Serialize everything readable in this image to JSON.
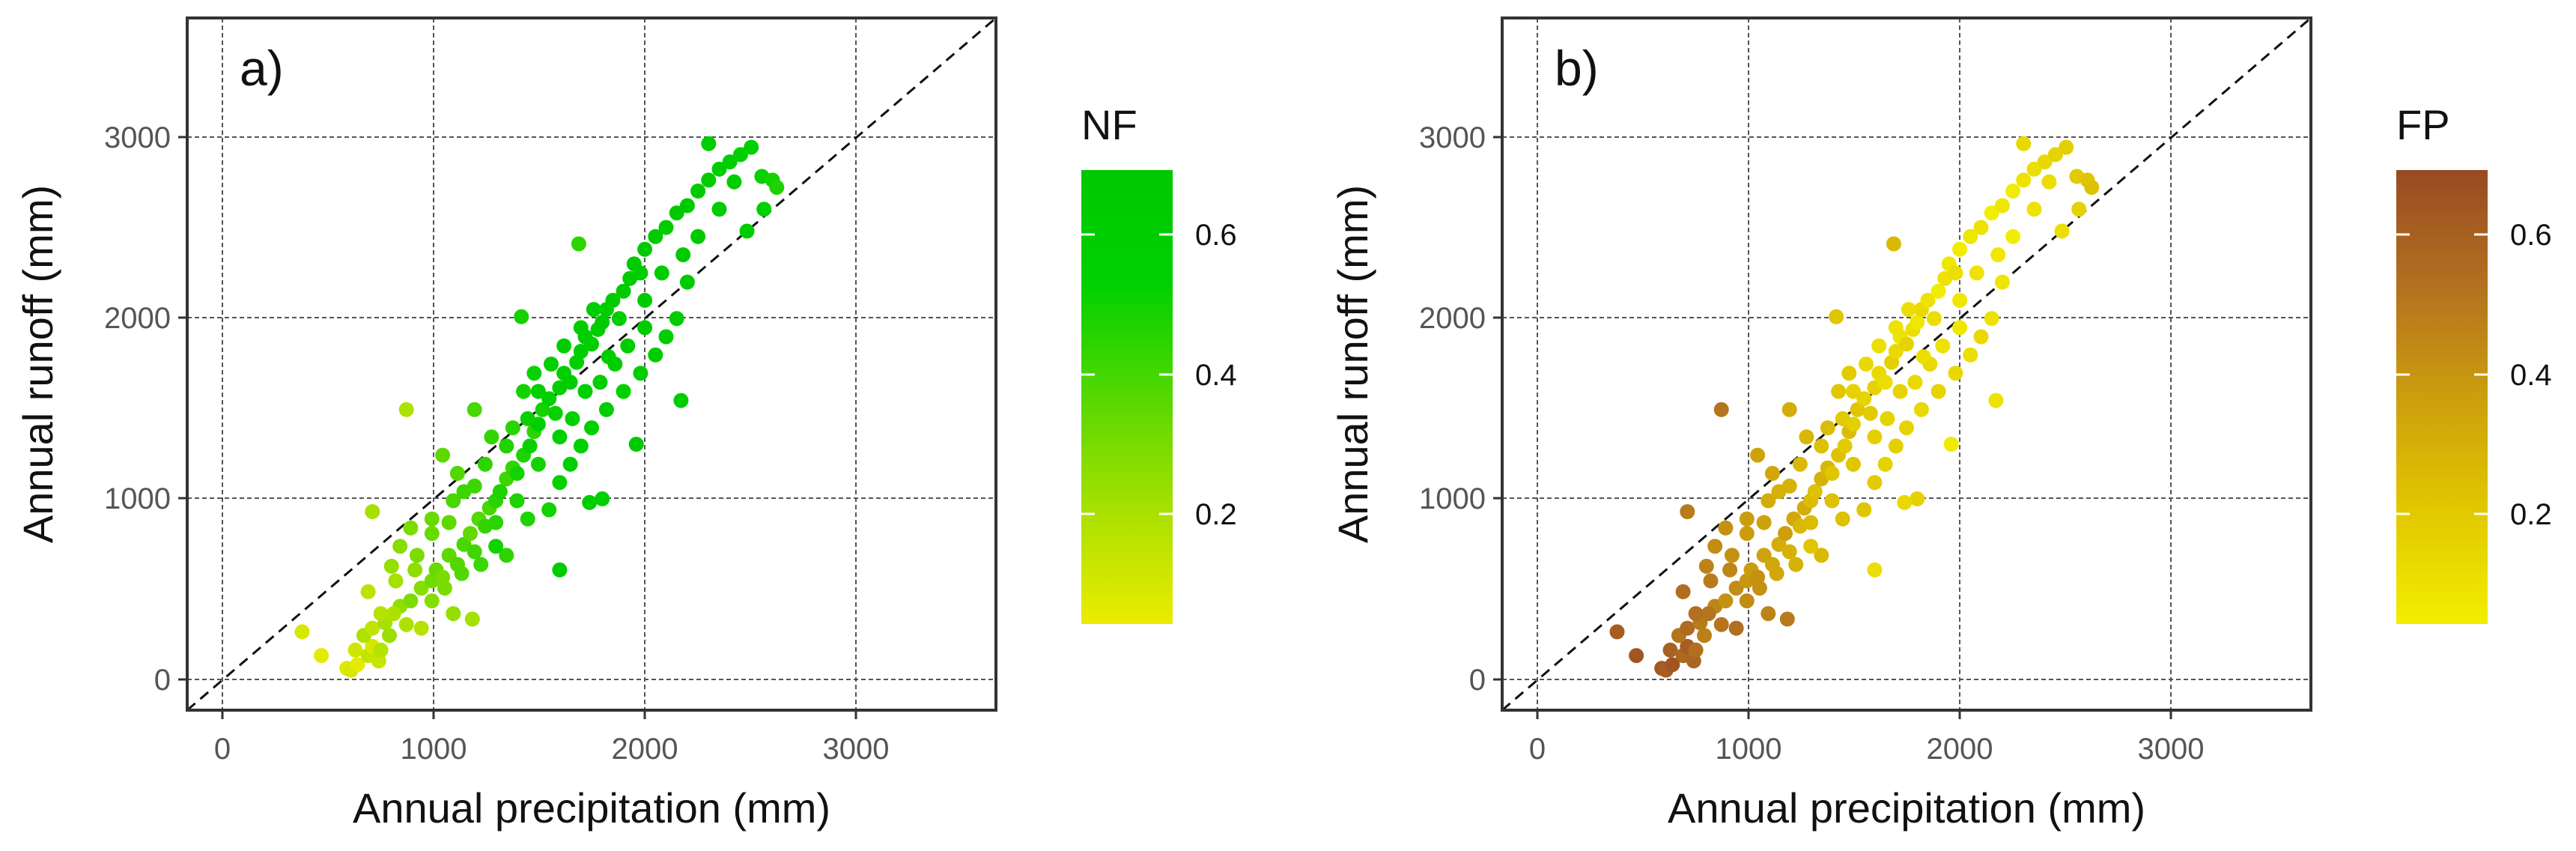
{
  "chart_data": [
    {
      "type": "scatter",
      "panel_label": "a)",
      "xlabel": "Annual precipitation (mm)",
      "ylabel": "Annual runoff (mm)",
      "xlim": [
        -150,
        3650
      ],
      "ylim": [
        -150,
        3650
      ],
      "xticks": [
        0,
        1000,
        2000,
        3000
      ],
      "yticks": [
        0,
        1000,
        2000,
        3000
      ],
      "tick_labels": [
        "0",
        "1000",
        "2000",
        "3000"
      ],
      "grid": true,
      "reference_line": "1:1",
      "color_variable": "NF",
      "colorbar": {
        "title": "NF",
        "ticks": [
          0.2,
          0.4,
          0.6
        ],
        "tick_labels": [
          "0.2",
          "0.4",
          "0.6"
        ],
        "range": [
          0.05,
          0.7
        ],
        "colors": [
          "#ecec00",
          "#a8e000",
          "#55d800",
          "#00d000",
          "#00c800"
        ]
      },
      "legend": "right"
    },
    {
      "type": "scatter",
      "panel_label": "b)",
      "xlabel": "Annual precipitation (mm)",
      "ylabel": "Annual runoff (mm)",
      "xlim": [
        -150,
        3650
      ],
      "ylim": [
        -150,
        3650
      ],
      "xticks": [
        0,
        1000,
        2000,
        3000
      ],
      "yticks": [
        0,
        1000,
        2000,
        3000
      ],
      "tick_labels": [
        "0",
        "1000",
        "2000",
        "3000"
      ],
      "grid": true,
      "reference_line": "1:1",
      "color_variable": "FP",
      "colorbar": {
        "title": "FP",
        "ticks": [
          0.2,
          0.4,
          0.6
        ],
        "tick_labels": [
          "0.2",
          "0.4",
          "0.6"
        ],
        "range": [
          0.05,
          0.7
        ],
        "colors": [
          "#f2ee00",
          "#e1c800",
          "#cc9e0d",
          "#b27020",
          "#994a22"
        ]
      },
      "legend": "right"
    }
  ],
  "points": [
    [
      600,
      80,
      0.08
    ],
    [
      620,
      70,
      0.1
    ],
    [
      650,
      100,
      0.07
    ],
    [
      640,
      180,
      0.12
    ],
    [
      700,
      150,
      0.15
    ],
    [
      720,
      200,
      0.1
    ],
    [
      750,
      120,
      0.14
    ],
    [
      760,
      180,
      0.18
    ],
    [
      680,
      260,
      0.2
    ],
    [
      720,
      300,
      0.16
    ],
    [
      780,
      330,
      0.22
    ],
    [
      800,
      260,
      0.24
    ],
    [
      850,
      420,
      0.26
    ],
    [
      820,
      380,
      0.2
    ],
    [
      900,
      450,
      0.3
    ],
    [
      950,
      520,
      0.28
    ],
    [
      1000,
      560,
      0.32
    ],
    [
      1020,
      620,
      0.34
    ],
    [
      1050,
      580,
      0.3
    ],
    [
      1080,
      700,
      0.36
    ],
    [
      1120,
      650,
      0.38
    ],
    [
      1150,
      760,
      0.4
    ],
    [
      1180,
      820,
      0.35
    ],
    [
      1200,
      720,
      0.42
    ],
    [
      1220,
      900,
      0.38
    ],
    [
      1250,
      860,
      0.44
    ],
    [
      1270,
      960,
      0.4
    ],
    [
      1300,
      1000,
      0.46
    ],
    [
      1320,
      1050,
      0.48
    ],
    [
      1350,
      1120,
      0.42
    ],
    [
      1380,
      1180,
      0.44
    ],
    [
      1400,
      1150,
      0.5
    ],
    [
      1430,
      1250,
      0.48
    ],
    [
      1460,
      1300,
      0.52
    ],
    [
      1480,
      1380,
      0.46
    ],
    [
      1500,
      1420,
      0.54
    ],
    [
      1520,
      1500,
      0.5
    ],
    [
      1550,
      1560,
      0.56
    ],
    [
      1580,
      1480,
      0.52
    ],
    [
      1600,
      1620,
      0.55
    ],
    [
      1620,
      1700,
      0.58
    ],
    [
      1650,
      1650,
      0.6
    ],
    [
      1680,
      1760,
      0.54
    ],
    [
      1700,
      1820,
      0.58
    ],
    [
      1720,
      1900,
      0.62
    ],
    [
      1750,
      1860,
      0.56
    ],
    [
      1780,
      1940,
      0.6
    ],
    [
      1800,
      1980,
      0.64
    ],
    [
      1820,
      2050,
      0.58
    ],
    [
      1850,
      2100,
      0.62
    ],
    [
      1880,
      2000,
      0.6
    ],
    [
      1900,
      2150,
      0.66
    ],
    [
      1930,
      2220,
      0.62
    ],
    [
      1950,
      2300,
      0.64
    ],
    [
      1980,
      2250,
      0.6
    ],
    [
      2000,
      2380,
      0.66
    ],
    [
      2050,
      2450,
      0.64
    ],
    [
      2100,
      2500,
      0.62
    ],
    [
      2150,
      2580,
      0.68
    ],
    [
      2200,
      2620,
      0.64
    ],
    [
      2250,
      2700,
      0.66
    ],
    [
      2300,
      2760,
      0.62
    ],
    [
      2350,
      2820,
      0.6
    ],
    [
      2400,
      2860,
      0.58
    ],
    [
      2450,
      2900,
      0.56
    ],
    [
      2500,
      2940,
      0.54
    ],
    [
      2550,
      2780,
      0.52
    ],
    [
      2600,
      2760,
      0.5
    ],
    [
      2620,
      2720,
      0.48
    ],
    [
      2560,
      2600,
      0.55
    ],
    [
      2300,
      2960,
      0.58
    ],
    [
      2480,
      2480,
      0.6
    ],
    [
      1200,
      1500,
      0.4
    ],
    [
      880,
      1500,
      0.2
    ],
    [
      1420,
      2010,
      0.5
    ],
    [
      1690,
      2410,
      0.45
    ],
    [
      2170,
      1550,
      0.62
    ],
    [
      1960,
      1310,
      0.65
    ],
    [
      1800,
      1010,
      0.55
    ],
    [
      1740,
      990,
      0.58
    ],
    [
      1600,
      620,
      0.6
    ],
    [
      1350,
      700,
      0.45
    ],
    [
      1100,
      380,
      0.25
    ],
    [
      950,
      300,
      0.18
    ],
    [
      1190,
      350,
      0.22
    ],
    [
      390,
      280,
      0.1
    ],
    [
      480,
      150,
      0.07
    ],
    [
      1100,
      1000,
      0.4
    ],
    [
      1300,
      750,
      0.5
    ],
    [
      1450,
      900,
      0.48
    ],
    [
      1550,
      950,
      0.5
    ],
    [
      1600,
      1100,
      0.52
    ],
    [
      1650,
      1200,
      0.55
    ],
    [
      1700,
      1300,
      0.54
    ],
    [
      1750,
      1400,
      0.56
    ],
    [
      1820,
      1500,
      0.58
    ],
    [
      1900,
      1600,
      0.56
    ],
    [
      1980,
      1700,
      0.58
    ],
    [
      2050,
      1800,
      0.6
    ],
    [
      2100,
      1900,
      0.58
    ],
    [
      2150,
      2000,
      0.62
    ],
    [
      1000,
      900,
      0.34
    ],
    [
      900,
      850,
      0.3
    ],
    [
      850,
      750,
      0.28
    ],
    [
      1050,
      1250,
      0.36
    ],
    [
      1150,
      1050,
      0.42
    ],
    [
      1250,
      1200,
      0.45
    ],
    [
      1350,
      1300,
      0.48
    ],
    [
      1450,
      1450,
      0.52
    ],
    [
      1500,
      1600,
      0.55
    ],
    [
      1560,
      1750,
      0.58
    ],
    [
      1620,
      1850,
      0.6
    ],
    [
      1700,
      1950,
      0.62
    ],
    [
      1760,
      2050,
      0.6
    ],
    [
      1860,
      1750,
      0.58
    ],
    [
      1920,
      1850,
      0.62
    ],
    [
      2000,
      1950,
      0.64
    ],
    [
      720,
      940,
      0.22
    ],
    [
      810,
      640,
      0.25
    ],
    [
      930,
      700,
      0.3
    ],
    [
      1000,
      820,
      0.34
    ],
    [
      1080,
      880,
      0.36
    ],
    [
      1120,
      1150,
      0.38
    ],
    [
      1200,
      1080,
      0.42
    ],
    [
      1280,
      1350,
      0.44
    ],
    [
      1380,
      1400,
      0.46
    ],
    [
      1430,
      1600,
      0.5
    ],
    [
      1480,
      1700,
      0.52
    ],
    [
      2080,
      2250,
      0.62
    ],
    [
      2180,
      2350,
      0.64
    ],
    [
      2250,
      2450,
      0.66
    ],
    [
      2350,
      2600,
      0.62
    ],
    [
      2420,
      2750,
      0.6
    ],
    [
      2200,
      2200,
      0.63
    ],
    [
      1000,
      450,
      0.28
    ],
    [
      1060,
      520,
      0.3
    ],
    [
      880,
      320,
      0.2
    ],
    [
      760,
      380,
      0.18
    ],
    [
      700,
      500,
      0.17
    ],
    [
      830,
      560,
      0.22
    ],
    [
      920,
      620,
      0.26
    ],
    [
      1140,
      600,
      0.38
    ],
    [
      1230,
      650,
      0.42
    ],
    [
      1300,
      880,
      0.46
    ],
    [
      1400,
      1000,
      0.48
    ],
    [
      1500,
      1200,
      0.5
    ],
    [
      1600,
      1350,
      0.54
    ],
    [
      1660,
      1450,
      0.56
    ],
    [
      1790,
      1650,
      0.58
    ],
    [
      1830,
      1790,
      0.6
    ],
    [
      1720,
      1600,
      0.56
    ],
    [
      2000,
      2100,
      0.64
    ]
  ]
}
